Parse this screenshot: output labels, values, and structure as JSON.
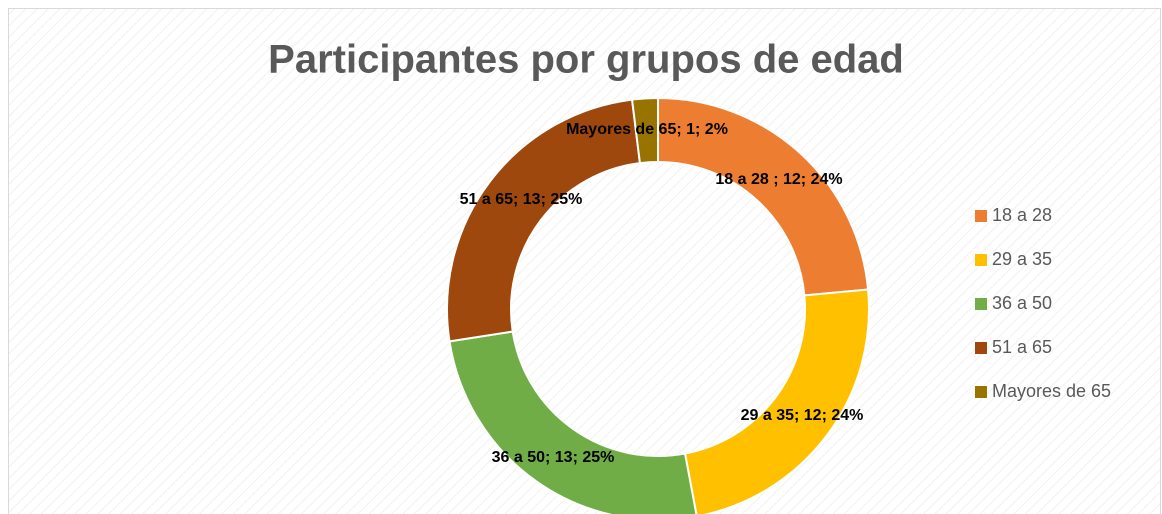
{
  "chart_data": {
    "type": "donut",
    "title": "Participantes por grupos de edad",
    "categories": [
      "18 a 28",
      "29 a 35",
      "36 a 50",
      "51 a 65",
      "Mayores de 65"
    ],
    "values": [
      12,
      12,
      13,
      13,
      1
    ],
    "value_labels": [
      "18 a 28 ; 12; 24%",
      "29 a 35; 12; 24%",
      "36 a 50; 13; 25%",
      "51 a 65; 13; 25%",
      "Mayores de 65; 1; 2%"
    ],
    "colors": [
      "#ED7D31",
      "#FFC000",
      "#70AD47",
      "#9E480E",
      "#997300"
    ],
    "legend": "right"
  }
}
